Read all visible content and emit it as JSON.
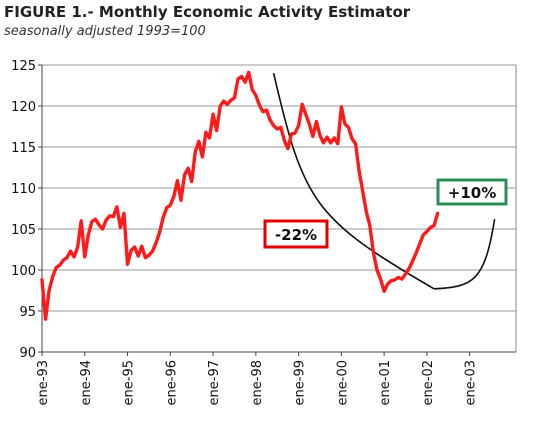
{
  "chart_data": {
    "type": "line",
    "title": "FIGURE 1.- Monthly Economic Activity Estimator",
    "subtitle": "seasonally adjusted  1993=100",
    "xlabel": "",
    "ylabel": "",
    "ylim": [
      90,
      125
    ],
    "yticks": [
      90,
      95,
      100,
      105,
      110,
      115,
      120,
      125
    ],
    "xtick_labels": [
      "ene-93",
      "ene-94",
      "ene-95",
      "ene-96",
      "ene-97",
      "ene-98",
      "ene-99",
      "ene-00",
      "ene-01",
      "ene-02",
      "ene-03"
    ],
    "x_start": "1993-01",
    "grid": true,
    "series_color": "#ff1a1a",
    "trend_color": "#111111",
    "series": [
      {
        "values": [
          98.8,
          94.0,
          97.5,
          99.2,
          100.3,
          100.6,
          101.2,
          101.5,
          102.3,
          101.6,
          102.8,
          106.0,
          101.6,
          104.3,
          105.9,
          106.2,
          105.5,
          105.0,
          106.1,
          106.6,
          106.5,
          107.7,
          105.2,
          106.9,
          100.7,
          102.4,
          102.8,
          101.7,
          102.9,
          101.5,
          101.8,
          102.3,
          103.3,
          104.6,
          106.4,
          107.6,
          107.9,
          109.0,
          110.9,
          108.5,
          111.6,
          112.4,
          110.8,
          114.4,
          115.7,
          113.8,
          116.8,
          116.1,
          119.0,
          117.0,
          120.0,
          120.6,
          120.2,
          120.7,
          121.0,
          123.3,
          123.6,
          122.9,
          124.1,
          122.0,
          121.3,
          120.1,
          119.3,
          119.5,
          118.3,
          117.6,
          117.2,
          117.4,
          115.8,
          114.8,
          116.6,
          116.7,
          117.6,
          120.2,
          119.0,
          117.8,
          116.3,
          118.1,
          116.4,
          115.5,
          116.2,
          115.5,
          116.1,
          115.4,
          119.9,
          117.8,
          117.4,
          116.0,
          115.4,
          112.0,
          109.6,
          107.1,
          105.4,
          102.1,
          100.0,
          98.9,
          97.4,
          98.3,
          98.7,
          98.8,
          99.1,
          98.9,
          99.5,
          100.2,
          101.1,
          102.1,
          103.2,
          104.3,
          104.7,
          105.2,
          105.4,
          106.9
        ]
      }
    ],
    "trend_lines": [
      {
        "from": [
          "1998-06",
          124.0
        ],
        "to": [
          "2002-03",
          97.7
        ],
        "label": "-22%"
      },
      {
        "from": [
          "2002-03",
          97.7
        ],
        "to": [
          "2003-08",
          106.2
        ],
        "label": "+10%"
      }
    ],
    "annotations": [
      {
        "text": "-22%",
        "color": "#e00000"
      },
      {
        "text": "+10%",
        "color": "#2e8b57"
      }
    ]
  }
}
